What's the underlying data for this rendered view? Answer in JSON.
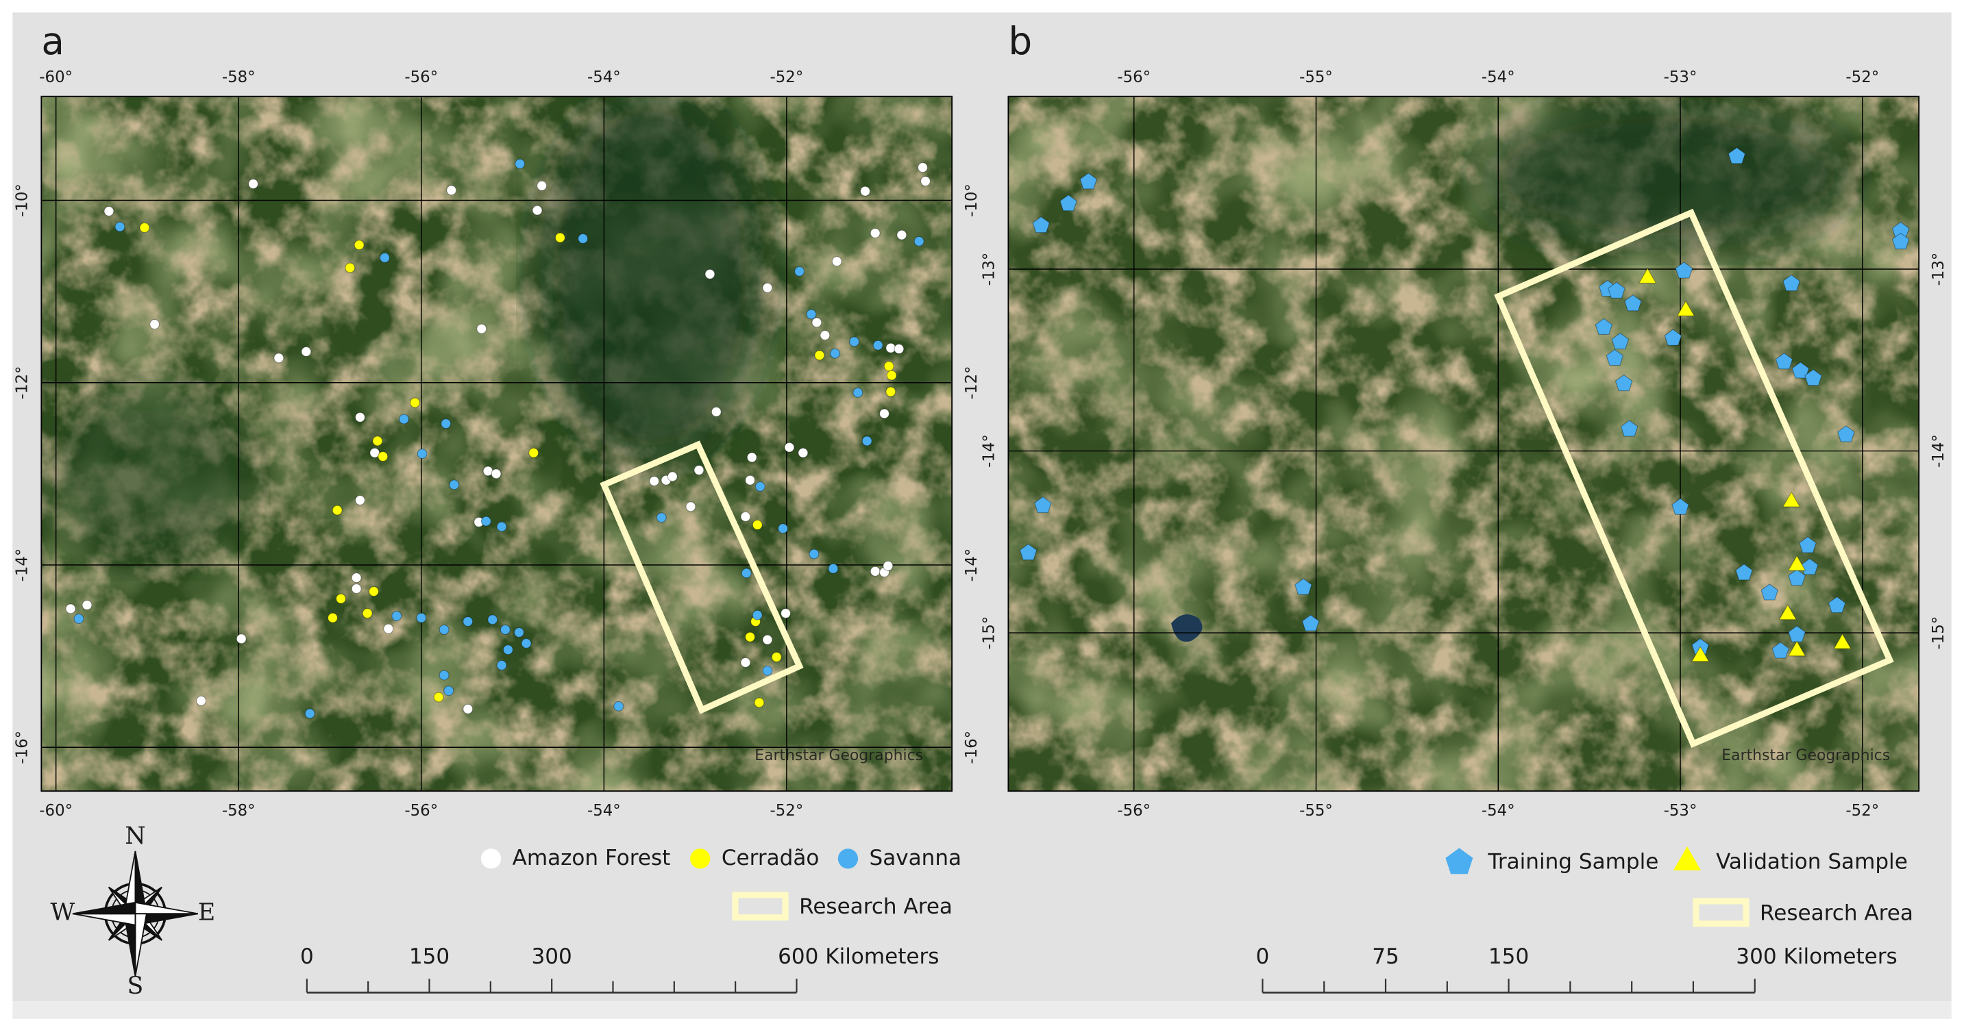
{
  "compass": {
    "north": "N",
    "south": "S",
    "west": "W",
    "east": "E"
  },
  "panels": [
    {
      "label": "a",
      "xlim": [
        -60.16,
        -50.19
      ],
      "ylim": [
        -16.48,
        -8.86
      ],
      "xticks": [
        {
          "value": -60,
          "label": "-60°"
        },
        {
          "value": -58,
          "label": "-58°"
        },
        {
          "value": -56,
          "label": "-56°"
        },
        {
          "value": -54,
          "label": "-54°"
        },
        {
          "value": -52,
          "label": "-52°"
        }
      ],
      "yticks": [
        {
          "value": -10,
          "label": "-10°"
        },
        {
          "value": -12,
          "label": "-12°"
        },
        {
          "value": -14,
          "label": "-14°"
        },
        {
          "value": -16,
          "label": "-16°"
        }
      ],
      "attribution": "Earthstar Geographics",
      "layers": [
        {
          "name": "Amazon Forest",
          "marker": "circle",
          "color": "#ffffff",
          "lon": [
            -59.42,
            -57.84,
            -58.92,
            -57.56,
            -57.26,
            -55.67,
            -54.73,
            -54.68,
            -55.34,
            -56.67,
            -56.51,
            -55.27,
            -55.18,
            -55.37,
            -56.67,
            -56.71,
            -56.71,
            -56.36,
            -57.97,
            -58.41,
            -55.49,
            -59.84,
            -59.66,
            -53.45,
            -53.32,
            -53.25,
            -53.05,
            -52.96,
            -52.84,
            -52.77,
            -52.21,
            -52.38,
            -52.4,
            -52.45,
            -51.97,
            -51.82,
            -52.01,
            -52.21,
            -52.45,
            -51.14,
            -51.03,
            -50.74,
            -50.51,
            -50.48,
            -51.67,
            -51.58,
            -51.45,
            -50.86,
            -50.77,
            -50.93,
            -51.03,
            -50.93,
            -50.89
          ],
          "lat": [
            -10.12,
            -9.82,
            -11.36,
            -11.73,
            -11.66,
            -9.89,
            -10.11,
            -9.84,
            -11.41,
            -12.38,
            -12.77,
            -12.97,
            -13.0,
            -13.53,
            -13.29,
            -14.14,
            -14.26,
            -14.7,
            -14.81,
            -15.49,
            -15.58,
            -14.48,
            -14.44,
            -13.08,
            -13.07,
            -13.03,
            -13.36,
            -12.96,
            -10.81,
            -12.32,
            -10.96,
            -12.82,
            -13.07,
            -13.47,
            -12.71,
            -12.77,
            -14.53,
            -14.82,
            -15.07,
            -9.9,
            -10.36,
            -10.38,
            -9.64,
            -9.79,
            -11.34,
            -11.48,
            -10.67,
            -11.62,
            -11.63,
            -12.34,
            -14.07,
            -14.08,
            -14.01
          ]
        },
        {
          "name": "Cerradão",
          "marker": "circle",
          "color": "#ffff00",
          "lon": [
            -59.03,
            -56.68,
            -56.78,
            -56.07,
            -56.48,
            -56.42,
            -56.92,
            -54.77,
            -54.48,
            -51.64,
            -50.88,
            -50.85,
            -50.86,
            -52.32,
            -52.34,
            -52.4,
            -52.3,
            -52.11,
            -56.52,
            -56.97,
            -56.88,
            -56.59,
            -55.81
          ],
          "lat": [
            -10.3,
            -10.49,
            -10.74,
            -12.22,
            -12.64,
            -12.81,
            -13.4,
            -12.77,
            -10.41,
            -11.7,
            -11.82,
            -11.92,
            -12.1,
            -13.56,
            -14.62,
            -14.79,
            -15.51,
            -15.01,
            -14.29,
            -14.58,
            -14.37,
            -14.53,
            -15.45
          ]
        },
        {
          "name": "Savanna",
          "marker": "circle",
          "color": "#4aaef0",
          "lon": [
            -59.3,
            -54.92,
            -54.23,
            -56.4,
            -56.19,
            -55.73,
            -55.99,
            -55.64,
            -55.29,
            -55.12,
            -55.75,
            -55.49,
            -55.22,
            -55.08,
            -54.93,
            -55.05,
            -55.12,
            -54.85,
            -56.27,
            -56.0,
            -55.75,
            -55.7,
            -57.22,
            -53.37,
            -52.29,
            -52.04,
            -51.7,
            -51.49,
            -51.86,
            -51.73,
            -51.47,
            -51.26,
            -51.0,
            -51.22,
            -51.12,
            -50.55,
            -53.84,
            -52.44,
            -52.32,
            -52.21,
            -59.75
          ],
          "lat": [
            -10.29,
            -9.6,
            -10.42,
            -10.63,
            -12.4,
            -12.45,
            -12.78,
            -13.12,
            -13.52,
            -13.58,
            -14.71,
            -14.62,
            -14.6,
            -14.71,
            -14.74,
            -14.93,
            -15.1,
            -14.86,
            -14.56,
            -14.58,
            -15.21,
            -15.38,
            -15.63,
            -13.48,
            -13.14,
            -13.6,
            -13.88,
            -14.04,
            -10.78,
            -11.25,
            -11.68,
            -11.55,
            -11.59,
            -12.11,
            -12.64,
            -10.45,
            -15.55,
            -14.09,
            -14.55,
            -15.16,
            -14.59
          ]
        }
      ],
      "research_area": {
        "name": "Research Area",
        "color": "#fff9c4",
        "lon": [
          -54.0,
          -52.97,
          -51.86,
          -52.93
        ],
        "lat": [
          -13.12,
          -12.68,
          -15.11,
          -15.59
        ]
      },
      "scale_bar": {
        "range": [
          0,
          600
        ],
        "ticks": [
          0,
          150,
          300,
          {
            "value": 600,
            "label": "600 Kilometers"
          }
        ],
        "minor_ticks": [
          75,
          225,
          375,
          450,
          525
        ]
      }
    },
    {
      "label": "b",
      "xlim": [
        -56.69,
        -51.69
      ],
      "ylim": [
        -15.87,
        -12.05
      ],
      "xticks": [
        {
          "value": -56,
          "label": "-56°"
        },
        {
          "value": -55,
          "label": "-55°"
        },
        {
          "value": -54,
          "label": "-54°"
        },
        {
          "value": -53,
          "label": "-53°"
        },
        {
          "value": -52,
          "label": "-52°"
        }
      ],
      "yticks": [
        {
          "value": -13,
          "label": "-13°"
        },
        {
          "value": -14,
          "label": "-14°"
        },
        {
          "value": -15,
          "label": "-15°"
        }
      ],
      "attribution": "Earthstar Geographics",
      "layers": [
        {
          "name": "Training Sample",
          "marker": "pentagon",
          "color": "#4aaef0",
          "lon": [
            -56.51,
            -56.36,
            -56.25,
            -56.5,
            -56.58,
            -55.07,
            -55.03,
            -52.69,
            -51.79,
            -51.79,
            -52.98,
            -53.4,
            -53.35,
            -53.26,
            -53.42,
            -53.33,
            -53.36,
            -53.31,
            -53.28,
            -53.04,
            -52.39,
            -52.43,
            -52.34,
            -52.27,
            -52.09,
            -53.0,
            -52.3,
            -52.29,
            -52.36,
            -52.65,
            -52.51,
            -52.14,
            -52.36,
            -52.45,
            -52.89
          ],
          "lat": [
            -12.76,
            -12.64,
            -12.52,
            -14.3,
            -14.56,
            -14.75,
            -14.95,
            -12.38,
            -12.79,
            -12.85,
            -13.01,
            -13.11,
            -13.12,
            -13.19,
            -13.32,
            -13.4,
            -13.49,
            -13.63,
            -13.88,
            -13.38,
            -13.08,
            -13.51,
            -13.56,
            -13.6,
            -13.91,
            -14.31,
            -14.52,
            -14.64,
            -14.7,
            -14.67,
            -14.78,
            -14.85,
            -15.01,
            -15.1,
            -15.08
          ]
        },
        {
          "name": "Validation Sample",
          "marker": "triangle",
          "color": "#ffff00",
          "lon": [
            -53.18,
            -52.97,
            -52.39,
            -52.36,
            -52.41,
            -52.36,
            -52.11,
            -52.89
          ],
          "lat": [
            -13.05,
            -13.23,
            -14.28,
            -14.63,
            -14.9,
            -15.1,
            -15.06,
            -15.13
          ]
        }
      ],
      "research_area": {
        "name": "Research Area",
        "color": "#fff9c4",
        "lon": [
          -54.0,
          -52.94,
          -51.85,
          -52.93
        ],
        "lat": [
          -13.15,
          -12.69,
          -15.15,
          -15.61
        ]
      },
      "scale_bar": {
        "range": [
          0,
          300
        ],
        "ticks": [
          0,
          75,
          150,
          {
            "value": 300,
            "label": "300 Kilometers"
          }
        ],
        "minor_ticks": [
          37.5,
          112.5,
          187.5,
          225,
          262.5
        ]
      }
    }
  ]
}
